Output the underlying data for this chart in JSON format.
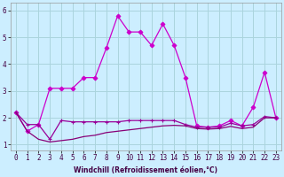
{
  "xlabel": "Windchill (Refroidissement éolien,°C)",
  "ylabel": "",
  "background_color": "#cceeff",
  "grid_color": "#aad4dd",
  "line_color1": "#cc00cc",
  "line_color2": "#990099",
  "line_color3": "#880077",
  "xlim": [
    -0.5,
    23.5
  ],
  "ylim": [
    0.8,
    6.3
  ],
  "xticks": [
    0,
    1,
    2,
    3,
    4,
    5,
    6,
    7,
    8,
    9,
    10,
    11,
    12,
    13,
    14,
    15,
    16,
    17,
    18,
    19,
    20,
    21,
    22,
    23
  ],
  "yticks": [
    1,
    2,
    3,
    4,
    5,
    6
  ],
  "s1_x": [
    0,
    1,
    2,
    3,
    4,
    5,
    6,
    7,
    8,
    9,
    10,
    11,
    12,
    13,
    14,
    15,
    16,
    17,
    18,
    19,
    20,
    21,
    22,
    23
  ],
  "s1_y": [
    2.2,
    1.5,
    1.75,
    3.1,
    3.1,
    3.1,
    3.5,
    3.5,
    4.6,
    5.8,
    5.2,
    5.2,
    4.7,
    5.5,
    4.7,
    3.5,
    1.7,
    1.65,
    1.7,
    1.9,
    1.7,
    2.4,
    3.7,
    2.0
  ],
  "s2_x": [
    0,
    1,
    2,
    3,
    4,
    5,
    6,
    7,
    8,
    9,
    10,
    11,
    12,
    13,
    14,
    15,
    16,
    17,
    18,
    19,
    20,
    21,
    22,
    23
  ],
  "s2_y": [
    2.2,
    1.75,
    1.75,
    1.2,
    1.9,
    1.85,
    1.85,
    1.85,
    1.85,
    1.85,
    1.9,
    1.9,
    1.9,
    1.9,
    1.9,
    1.75,
    1.65,
    1.65,
    1.65,
    1.8,
    1.7,
    1.75,
    2.05,
    2.0
  ],
  "s3_x": [
    0,
    1,
    2,
    3,
    4,
    5,
    6,
    7,
    8,
    9,
    10,
    11,
    12,
    13,
    14,
    15,
    16,
    17,
    18,
    19,
    20,
    21,
    22,
    23
  ],
  "s3_y": [
    2.2,
    1.5,
    1.2,
    1.1,
    1.15,
    1.2,
    1.3,
    1.35,
    1.45,
    1.5,
    1.55,
    1.6,
    1.65,
    1.7,
    1.72,
    1.7,
    1.6,
    1.58,
    1.6,
    1.68,
    1.6,
    1.65,
    2.0,
    2.0
  ]
}
